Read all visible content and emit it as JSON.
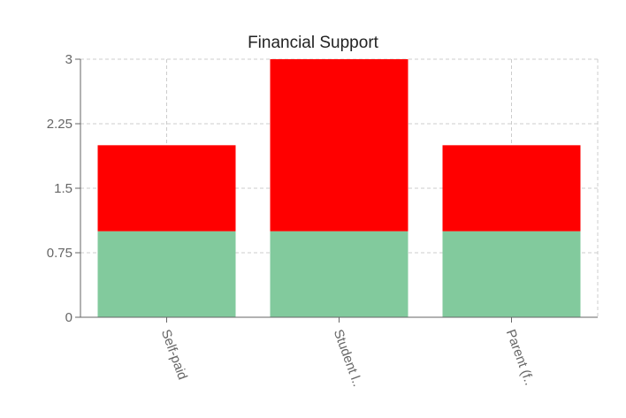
{
  "chart_data": {
    "type": "bar",
    "stacked": true,
    "title": "Financial Support",
    "categories": [
      "Self-paid",
      "Student l..",
      "Parent (f.."
    ],
    "series": [
      {
        "values": [
          1,
          1,
          1
        ],
        "color": "#82ca9d"
      },
      {
        "values": [
          1,
          2,
          1
        ],
        "color": "#ff0000"
      }
    ],
    "ylim": [
      0,
      3
    ],
    "yticks": [
      0,
      0.75,
      1.5,
      2.25,
      3
    ],
    "ytick_labels": [
      "0",
      "0.75",
      "1.5",
      "2.25",
      "3"
    ],
    "grid": true,
    "xlabel": "",
    "ylabel": ""
  }
}
